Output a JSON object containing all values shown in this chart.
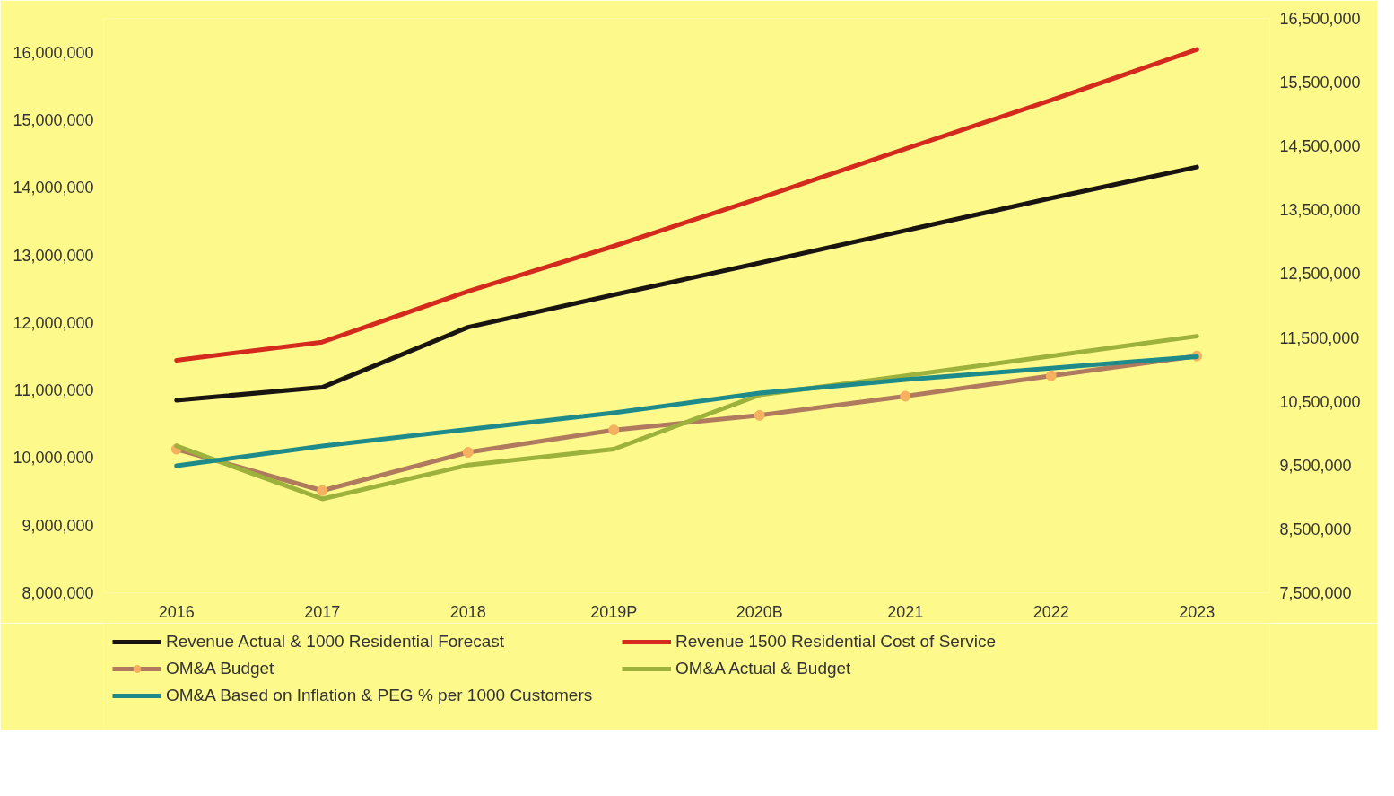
{
  "chart_data": {
    "type": "line",
    "categories": [
      "2016",
      "2017",
      "2018",
      "2019P",
      "2020B",
      "2021",
      "2022",
      "2023"
    ],
    "series": [
      {
        "name": "Revenue Actual & 1000 Residential Forecast",
        "color": "#1a1410",
        "values": [
          10850000,
          11040000,
          11930000,
          12410000,
          12880000,
          13360000,
          13840000,
          14300000
        ]
      },
      {
        "name": "Revenue 1500 Residential Cost of Service",
        "color": "#d42a1e",
        "values": [
          11440000,
          11710000,
          12460000,
          13130000,
          13840000,
          14570000,
          15290000,
          16040000
        ]
      },
      {
        "name": "OM&A Budget",
        "color": "#b07a5e",
        "marker": "circle",
        "axis": "y2",
        "values": [
          9750000,
          9100000,
          9700000,
          10050000,
          10280000,
          10580000,
          10900000,
          11210000
        ]
      },
      {
        "name": "OM&A Actual & Budget",
        "color": "#9cb23c",
        "axis": "y2",
        "values": [
          9800000,
          8970000,
          9500000,
          9750000,
          10600000,
          10900000,
          11210000,
          11520000
        ]
      },
      {
        "name": "OM&A Based on Inflation & PEG % per 1000 Customers",
        "color": "#1f8a8a",
        "axis": "y2",
        "values": [
          9490000,
          9800000,
          10060000,
          10320000,
          10630000,
          10840000,
          11020000,
          11200000
        ]
      }
    ],
    "ylim": [
      8000000,
      16500000
    ],
    "yticks": [
      {
        "value": 8000000,
        "label": "8,000,000"
      },
      {
        "value": 9000000,
        "label": "9,000,000"
      },
      {
        "value": 10000000,
        "label": "10,000,000"
      },
      {
        "value": 11000000,
        "label": "11,000,000"
      },
      {
        "value": 12000000,
        "label": "12,000,000"
      },
      {
        "value": 13000000,
        "label": "13,000,000"
      },
      {
        "value": 14000000,
        "label": "14,000,000"
      },
      {
        "value": 15000000,
        "label": "15,000,000"
      },
      {
        "value": 16000000,
        "label": "16,000,000"
      }
    ],
    "y2lim": [
      7500000,
      16500000
    ],
    "y2ticks": [
      {
        "value": 7500000,
        "label": "7,500,000"
      },
      {
        "value": 8500000,
        "label": "8,500,000"
      },
      {
        "value": 9500000,
        "label": "9,500,000"
      },
      {
        "value": 10500000,
        "label": "10,500,000"
      },
      {
        "value": 11500000,
        "label": "11,500,000"
      },
      {
        "value": 12500000,
        "label": "12,500,000"
      },
      {
        "value": 13500000,
        "label": "13,500,000"
      },
      {
        "value": 14500000,
        "label": "14,500,000"
      },
      {
        "value": 15500000,
        "label": "15,500,000"
      },
      {
        "value": 16500000,
        "label": "16,500,000"
      }
    ],
    "grid": false,
    "legend": "bottom",
    "line_style": "solid"
  }
}
